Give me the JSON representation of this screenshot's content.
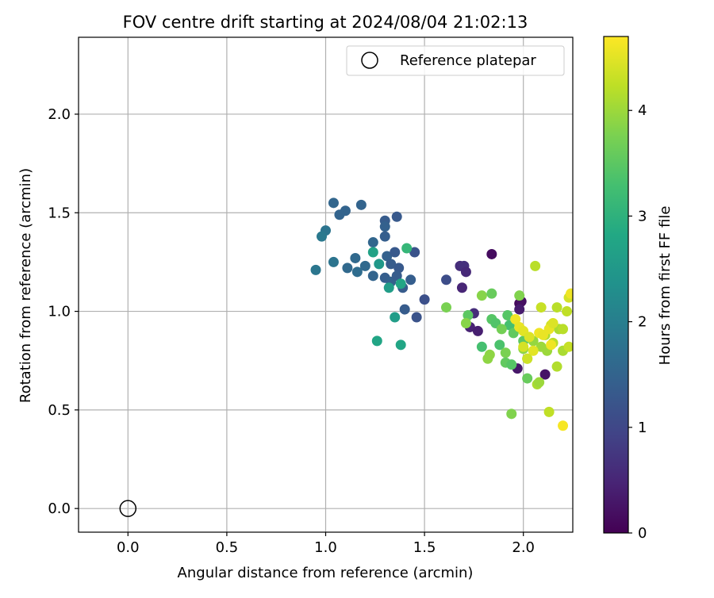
{
  "chart_data": {
    "type": "scatter",
    "title": "FOV centre drift starting at 2024/08/04 21:02:13",
    "xlabel": "Angular distance from reference (arcmin)",
    "ylabel": "Rotation from reference (arcmin)",
    "xlim": [
      -0.25,
      2.25
    ],
    "ylim": [
      -0.12,
      2.39
    ],
    "xticks": [
      0.0,
      0.5,
      1.0,
      1.5,
      2.0
    ],
    "xtick_labels": [
      "0.0",
      "0.5",
      "1.0",
      "1.5",
      "2.0"
    ],
    "yticks": [
      0.0,
      0.5,
      1.0,
      1.5,
      2.0
    ],
    "ytick_labels": [
      "0.0",
      "0.5",
      "1.0",
      "1.5",
      "2.0"
    ],
    "grid": true,
    "legend": {
      "location": "upper right",
      "entries": [
        {
          "label": "Reference platepar",
          "marker": "open-circle",
          "color": "#000000"
        }
      ]
    },
    "colorbar": {
      "label": "Hours from first FF file",
      "colormap": "viridis",
      "range": [
        0,
        4.7
      ],
      "ticks": [
        0,
        1,
        2,
        3,
        4
      ],
      "tick_labels": [
        "0",
        "1",
        "2",
        "3",
        "4"
      ]
    },
    "reference_point": {
      "x": 0.0,
      "y": 0.0
    },
    "points": [
      {
        "x": 1.04,
        "y": 1.55,
        "t": 1.55
      },
      {
        "x": 1.1,
        "y": 1.51,
        "t": 1.5
      },
      {
        "x": 1.07,
        "y": 1.49,
        "t": 1.5
      },
      {
        "x": 1.18,
        "y": 1.54,
        "t": 1.5
      },
      {
        "x": 1.3,
        "y": 1.46,
        "t": 1.35
      },
      {
        "x": 1.36,
        "y": 1.48,
        "t": 1.3
      },
      {
        "x": 1.3,
        "y": 1.43,
        "t": 1.45
      },
      {
        "x": 1.0,
        "y": 1.41,
        "t": 1.8
      },
      {
        "x": 0.98,
        "y": 1.38,
        "t": 1.9
      },
      {
        "x": 1.3,
        "y": 1.38,
        "t": 1.4
      },
      {
        "x": 1.24,
        "y": 1.35,
        "t": 1.55
      },
      {
        "x": 1.15,
        "y": 1.27,
        "t": 1.6
      },
      {
        "x": 1.04,
        "y": 1.25,
        "t": 1.8
      },
      {
        "x": 0.95,
        "y": 1.21,
        "t": 1.85
      },
      {
        "x": 1.11,
        "y": 1.22,
        "t": 1.6
      },
      {
        "x": 1.16,
        "y": 1.2,
        "t": 1.65
      },
      {
        "x": 1.2,
        "y": 1.23,
        "t": 1.6
      },
      {
        "x": 1.24,
        "y": 1.18,
        "t": 1.5
      },
      {
        "x": 1.31,
        "y": 1.28,
        "t": 1.45
      },
      {
        "x": 1.35,
        "y": 1.3,
        "t": 1.3
      },
      {
        "x": 1.33,
        "y": 1.24,
        "t": 1.35
      },
      {
        "x": 1.37,
        "y": 1.22,
        "t": 1.3
      },
      {
        "x": 1.3,
        "y": 1.17,
        "t": 1.4
      },
      {
        "x": 1.33,
        "y": 1.15,
        "t": 1.45
      },
      {
        "x": 1.36,
        "y": 1.18,
        "t": 1.35
      },
      {
        "x": 1.39,
        "y": 1.12,
        "t": 1.35
      },
      {
        "x": 1.45,
        "y": 1.3,
        "t": 1.2
      },
      {
        "x": 1.43,
        "y": 1.16,
        "t": 1.4
      },
      {
        "x": 1.5,
        "y": 1.06,
        "t": 1.15
      },
      {
        "x": 1.4,
        "y": 1.01,
        "t": 1.35
      },
      {
        "x": 1.46,
        "y": 0.97,
        "t": 1.2
      },
      {
        "x": 1.27,
        "y": 1.24,
        "t": 2.5
      },
      {
        "x": 1.24,
        "y": 1.3,
        "t": 2.7
      },
      {
        "x": 1.41,
        "y": 1.32,
        "t": 3.1
      },
      {
        "x": 1.38,
        "y": 1.14,
        "t": 2.75
      },
      {
        "x": 1.32,
        "y": 1.12,
        "t": 2.6
      },
      {
        "x": 1.35,
        "y": 0.97,
        "t": 2.6
      },
      {
        "x": 1.26,
        "y": 0.85,
        "t": 2.75
      },
      {
        "x": 1.38,
        "y": 0.83,
        "t": 2.75
      },
      {
        "x": 1.61,
        "y": 1.16,
        "t": 1.1
      },
      {
        "x": 1.68,
        "y": 1.23,
        "t": 0.6
      },
      {
        "x": 1.7,
        "y": 1.23,
        "t": 0.65
      },
      {
        "x": 1.71,
        "y": 1.2,
        "t": 0.55
      },
      {
        "x": 1.69,
        "y": 1.12,
        "t": 0.5
      },
      {
        "x": 1.84,
        "y": 1.29,
        "t": 0.15
      },
      {
        "x": 1.75,
        "y": 0.99,
        "t": 0.6
      },
      {
        "x": 1.73,
        "y": 0.92,
        "t": 0.45
      },
      {
        "x": 1.77,
        "y": 0.9,
        "t": 0.4
      },
      {
        "x": 1.98,
        "y": 1.04,
        "t": 0.1
      },
      {
        "x": 1.99,
        "y": 1.05,
        "t": 0.2
      },
      {
        "x": 1.98,
        "y": 1.01,
        "t": 0.35
      },
      {
        "x": 1.97,
        "y": 0.71,
        "t": 0.3
      },
      {
        "x": 2.11,
        "y": 0.68,
        "t": 0.25
      },
      {
        "x": 1.61,
        "y": 1.02,
        "t": 3.75
      },
      {
        "x": 1.72,
        "y": 0.98,
        "t": 3.5
      },
      {
        "x": 1.71,
        "y": 0.94,
        "t": 3.85
      },
      {
        "x": 1.79,
        "y": 1.08,
        "t": 3.85
      },
      {
        "x": 1.84,
        "y": 1.09,
        "t": 3.6
      },
      {
        "x": 1.84,
        "y": 0.96,
        "t": 3.45
      },
      {
        "x": 1.86,
        "y": 0.94,
        "t": 3.4
      },
      {
        "x": 1.79,
        "y": 0.82,
        "t": 3.3
      },
      {
        "x": 1.82,
        "y": 0.76,
        "t": 3.9
      },
      {
        "x": 1.83,
        "y": 0.78,
        "t": 3.9
      },
      {
        "x": 1.88,
        "y": 0.83,
        "t": 3.35
      },
      {
        "x": 1.91,
        "y": 0.79,
        "t": 3.75
      },
      {
        "x": 1.91,
        "y": 0.74,
        "t": 3.55
      },
      {
        "x": 1.94,
        "y": 0.73,
        "t": 3.45
      },
      {
        "x": 1.92,
        "y": 0.98,
        "t": 3.45
      },
      {
        "x": 1.93,
        "y": 0.93,
        "t": 3.3
      },
      {
        "x": 1.89,
        "y": 0.91,
        "t": 3.7
      },
      {
        "x": 1.95,
        "y": 0.89,
        "t": 3.55
      },
      {
        "x": 1.98,
        "y": 1.08,
        "t": 3.8
      },
      {
        "x": 1.94,
        "y": 0.48,
        "t": 3.8
      },
      {
        "x": 2.02,
        "y": 0.66,
        "t": 3.6
      },
      {
        "x": 2.0,
        "y": 0.85,
        "t": 3.5
      },
      {
        "x": 2.0,
        "y": 0.81,
        "t": 3.9
      },
      {
        "x": 2.02,
        "y": 0.76,
        "t": 4.0
      },
      {
        "x": 2.05,
        "y": 0.85,
        "t": 3.95
      },
      {
        "x": 2.06,
        "y": 1.23,
        "t": 4.2
      },
      {
        "x": 2.07,
        "y": 0.63,
        "t": 4.1
      },
      {
        "x": 2.08,
        "y": 0.64,
        "t": 4.0
      },
      {
        "x": 2.09,
        "y": 0.82,
        "t": 4.0
      },
      {
        "x": 2.09,
        "y": 1.02,
        "t": 4.3
      },
      {
        "x": 2.11,
        "y": 0.88,
        "t": 4.1
      },
      {
        "x": 2.12,
        "y": 0.8,
        "t": 4.0
      },
      {
        "x": 2.13,
        "y": 0.49,
        "t": 4.25
      },
      {
        "x": 2.14,
        "y": 0.93,
        "t": 4.35
      },
      {
        "x": 2.15,
        "y": 0.84,
        "t": 4.2
      },
      {
        "x": 2.17,
        "y": 1.02,
        "t": 4.2
      },
      {
        "x": 2.17,
        "y": 0.72,
        "t": 4.15
      },
      {
        "x": 2.18,
        "y": 0.91,
        "t": 4.1
      },
      {
        "x": 2.2,
        "y": 0.8,
        "t": 4.1
      },
      {
        "x": 2.2,
        "y": 0.91,
        "t": 4.2
      },
      {
        "x": 2.22,
        "y": 1.0,
        "t": 4.25
      },
      {
        "x": 2.23,
        "y": 1.07,
        "t": 4.4
      },
      {
        "x": 2.24,
        "y": 1.09,
        "t": 4.6
      },
      {
        "x": 2.23,
        "y": 0.82,
        "t": 4.3
      },
      {
        "x": 2.2,
        "y": 0.42,
        "t": 4.65
      },
      {
        "x": 1.96,
        "y": 0.96,
        "t": 4.6
      },
      {
        "x": 1.98,
        "y": 0.92,
        "t": 4.55
      },
      {
        "x": 2.0,
        "y": 0.9,
        "t": 4.5
      },
      {
        "x": 2.03,
        "y": 0.87,
        "t": 4.45
      },
      {
        "x": 2.05,
        "y": 0.8,
        "t": 4.5
      },
      {
        "x": 2.08,
        "y": 0.89,
        "t": 4.6
      },
      {
        "x": 2.1,
        "y": 0.88,
        "t": 4.55
      },
      {
        "x": 2.14,
        "y": 0.83,
        "t": 4.6
      },
      {
        "x": 2.13,
        "y": 0.91,
        "t": 4.55
      },
      {
        "x": 2.15,
        "y": 0.94,
        "t": 4.45
      },
      {
        "x": 2.02,
        "y": 0.76,
        "t": 4.35
      },
      {
        "x": 2.0,
        "y": 0.82,
        "t": 4.4
      }
    ]
  }
}
